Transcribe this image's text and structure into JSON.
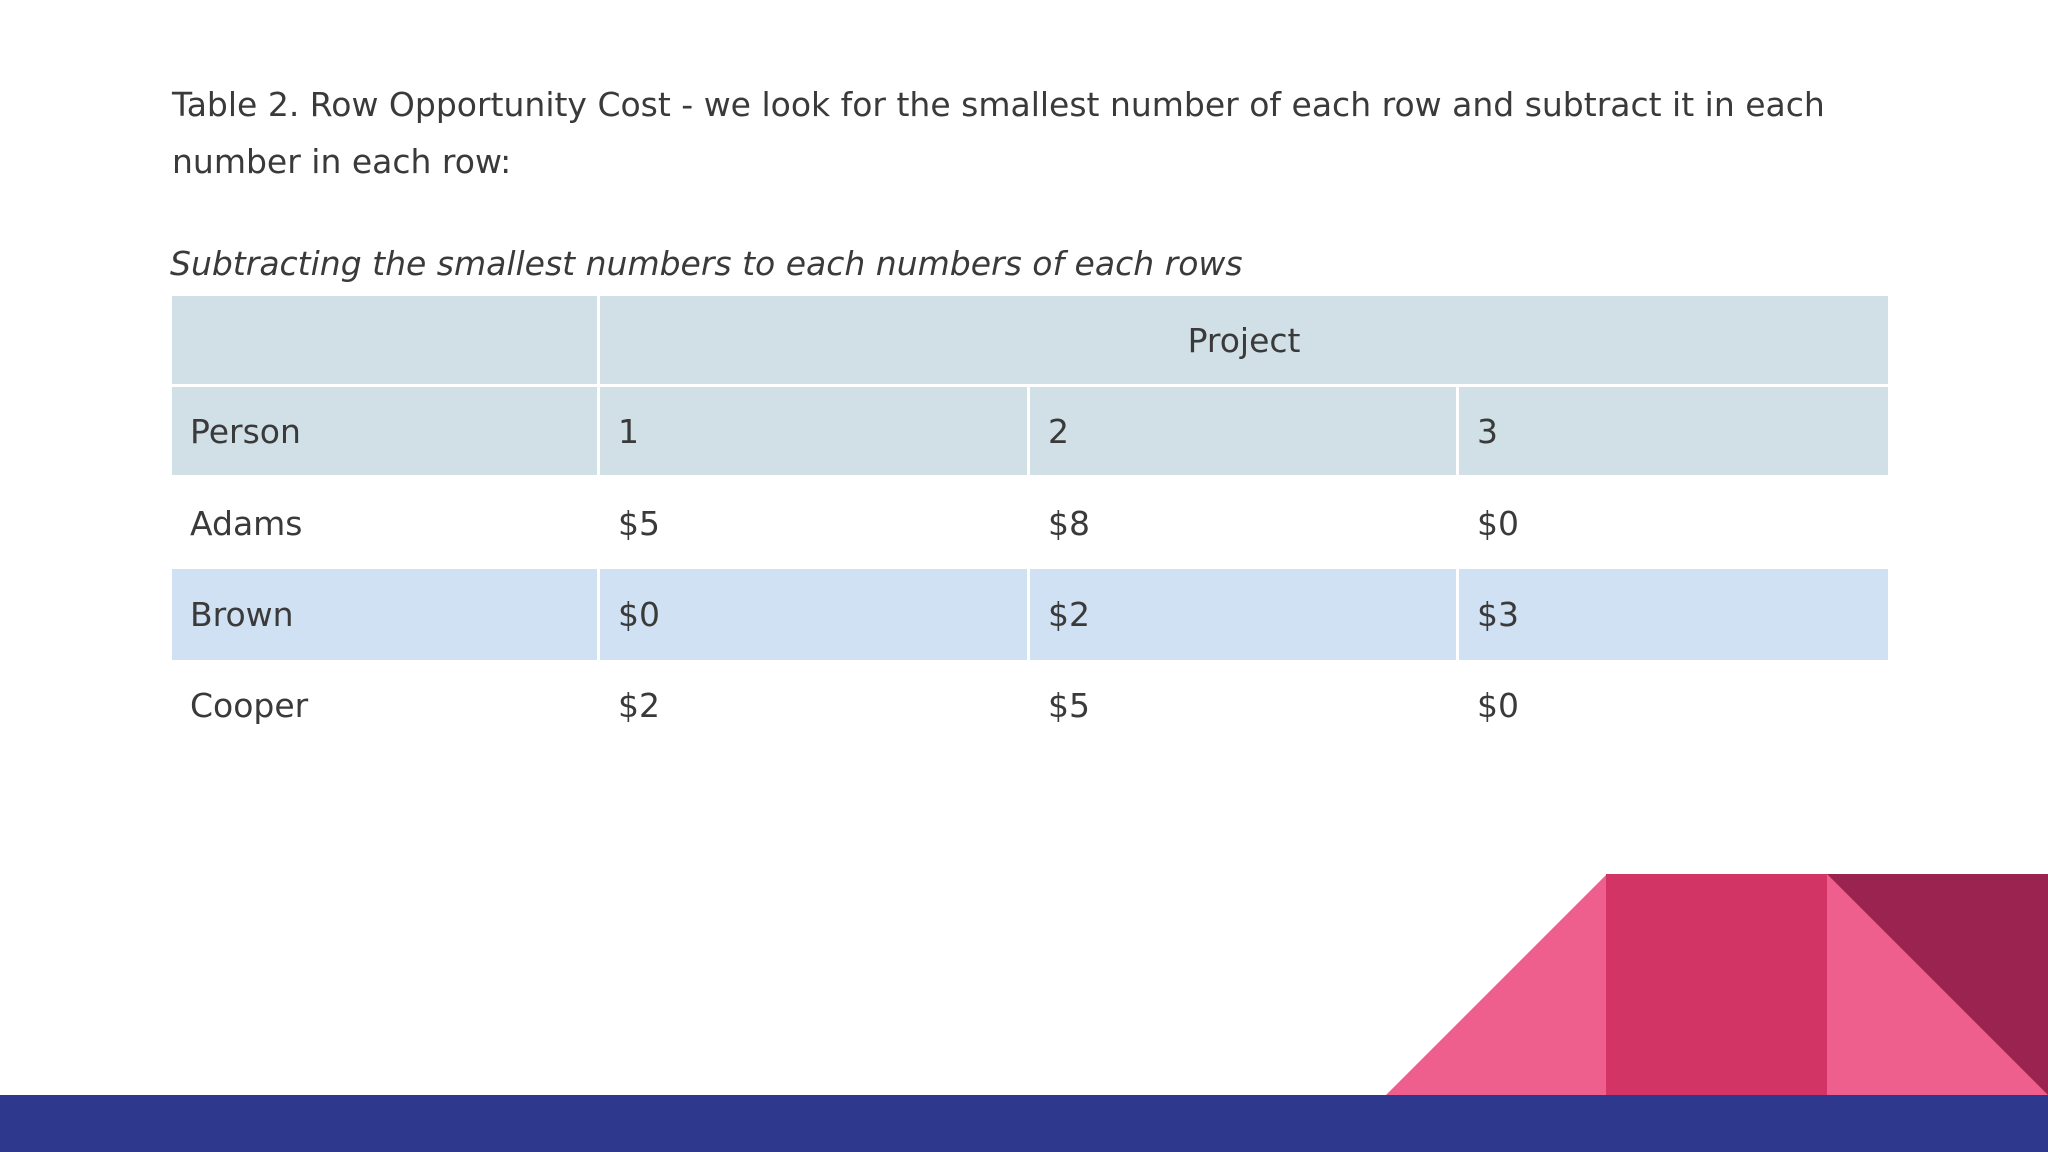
{
  "intro_text": "Table 2. Row Opportunity Cost - we look for the smallest number of each row and subtract it in each number in each row:",
  "caption": "Subtracting the smallest numbers to each numbers of each rows",
  "table": {
    "group_header": "Project",
    "column_headers": [
      "Person",
      "1",
      "2",
      "3"
    ],
    "rows": [
      {
        "person": "Adams",
        "values": [
          "$5",
          "$8",
          "$0"
        ]
      },
      {
        "person": "Brown",
        "values": [
          "$0",
          "$2",
          "$3"
        ]
      },
      {
        "person": "Cooper",
        "values": [
          "$2",
          "$5",
          "$0"
        ]
      }
    ]
  },
  "colors": {
    "header_fill": "#d1e0e6",
    "band_fill": "#cfe1f2",
    "footer_bar": "#2e388c",
    "pink_light": "#ef5f8d",
    "pink_mid": "#d23466",
    "maroon": "#9b2350"
  }
}
